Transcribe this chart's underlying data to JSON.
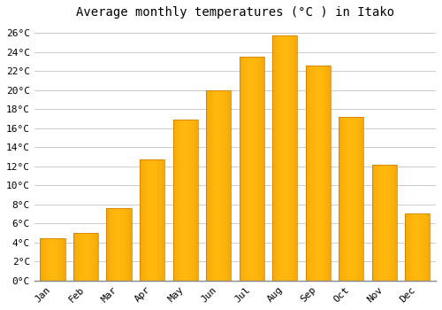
{
  "title": "Average monthly temperatures (°C ) in Itako",
  "months": [
    "Jan",
    "Feb",
    "Mar",
    "Apr",
    "May",
    "Jun",
    "Jul",
    "Aug",
    "Sep",
    "Oct",
    "Nov",
    "Dec"
  ],
  "temperatures": [
    4.4,
    5.0,
    7.6,
    12.7,
    16.9,
    20.0,
    23.5,
    25.7,
    22.6,
    17.2,
    12.2,
    7.0
  ],
  "bar_color": "#FFC020",
  "bar_edge_color": "#E08000",
  "ylim": [
    0,
    27
  ],
  "yticks": [
    0,
    2,
    4,
    6,
    8,
    10,
    12,
    14,
    16,
    18,
    20,
    22,
    24,
    26
  ],
  "background_color": "#ffffff",
  "grid_color": "#cccccc",
  "title_fontsize": 10,
  "tick_fontsize": 8,
  "font_family": "monospace"
}
